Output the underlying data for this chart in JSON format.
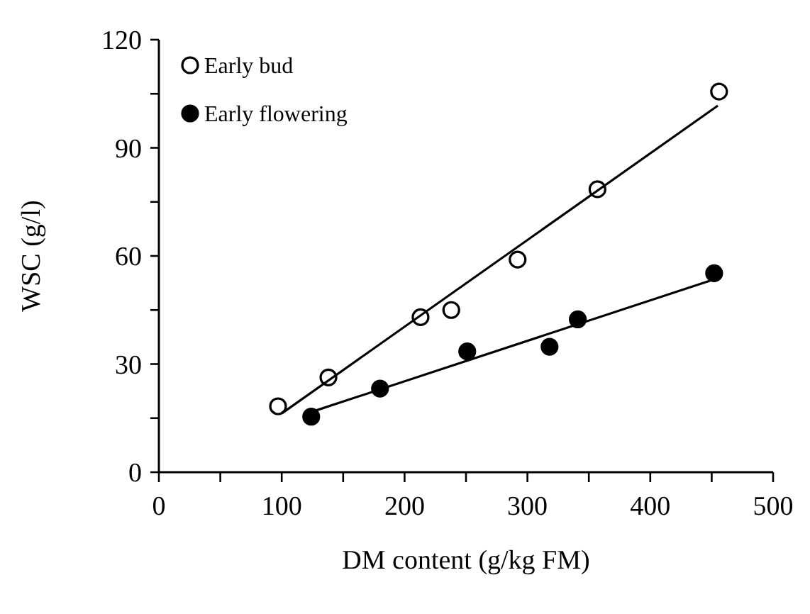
{
  "chart_data": {
    "type": "scatter",
    "xlabel": "DM content (g/kg FM)",
    "ylabel": "WSC (g/l)",
    "xlim": [
      0,
      500
    ],
    "ylim": [
      0,
      120
    ],
    "xticks": [
      0,
      {
        "value": 50,
        "label": null
      },
      100,
      {
        "value": 150,
        "label": null
      },
      200,
      {
        "value": 250,
        "label": null
      },
      300,
      {
        "value": 350,
        "label": null
      },
      400,
      {
        "value": 450,
        "label": null
      },
      500
    ],
    "yticks": [
      0,
      {
        "value": 15,
        "label": null
      },
      30,
      {
        "value": 45,
        "label": null
      },
      60,
      {
        "value": 75,
        "label": null
      },
      90,
      {
        "value": 105,
        "label": null
      },
      120
    ],
    "grid": false,
    "legend": "top left",
    "marker": "circle",
    "series": [
      {
        "name": "Early bud",
        "color": "#ffffff",
        "x": [
          97,
          138,
          213,
          238,
          292,
          357,
          456
        ],
        "values": [
          18.3,
          26.3,
          43,
          45,
          59,
          78.5,
          105.6
        ]
      },
      {
        "name": "Early flowering",
        "color": "#000000",
        "x": [
          124,
          180,
          251,
          318,
          341,
          452
        ],
        "values": [
          15.4,
          23.2,
          33.5,
          34.8,
          42.4,
          55.2
        ]
      },
      {
        "type": "line",
        "color": "#000000",
        "marker": "none",
        "x": [
          100,
          455
        ],
        "values": [
          16.3,
          101.7
        ]
      },
      {
        "type": "line",
        "color": "#000000",
        "marker": "none",
        "x": [
          124,
          452
        ],
        "values": [
          16.7,
          53.5
        ]
      }
    ]
  }
}
